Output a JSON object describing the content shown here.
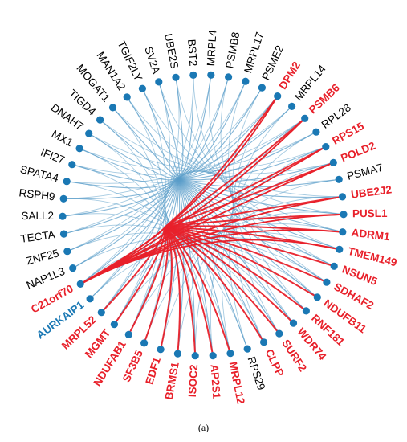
{
  "caption": "(a)",
  "colors": {
    "red": "#e8202a",
    "blue": "#1a78b4",
    "black": "#000000",
    "edge_blue": "#5b9ec9",
    "edge_red": "#e8202a"
  },
  "nodes": [
    {
      "label": "DPM2",
      "color": "red",
      "bold": true
    },
    {
      "label": "MRPL14",
      "color": "black",
      "bold": false
    },
    {
      "label": "PSMB6",
      "color": "red",
      "bold": true
    },
    {
      "label": "RPL28",
      "color": "black",
      "bold": false
    },
    {
      "label": "RPS15",
      "color": "red",
      "bold": true
    },
    {
      "label": "POLD2",
      "color": "red",
      "bold": true
    },
    {
      "label": "PSMA7",
      "color": "black",
      "bold": false
    },
    {
      "label": "UBE2J2",
      "color": "red",
      "bold": true
    },
    {
      "label": "PUSL1",
      "color": "red",
      "bold": true
    },
    {
      "label": "ADRM1",
      "color": "red",
      "bold": true
    },
    {
      "label": "TMEM149",
      "color": "red",
      "bold": true
    },
    {
      "label": "NSUN5",
      "color": "red",
      "bold": true
    },
    {
      "label": "SDHAF2",
      "color": "red",
      "bold": true
    },
    {
      "label": "NDUFB11",
      "color": "red",
      "bold": true
    },
    {
      "label": "RNF181",
      "color": "red",
      "bold": true
    },
    {
      "label": "WDR74",
      "color": "red",
      "bold": true
    },
    {
      "label": "SURF2",
      "color": "red",
      "bold": true
    },
    {
      "label": "CLPP",
      "color": "red",
      "bold": true
    },
    {
      "label": "RPS29",
      "color": "black",
      "bold": false
    },
    {
      "label": "MRPL12",
      "color": "red",
      "bold": true
    },
    {
      "label": "AP2S1",
      "color": "red",
      "bold": true
    },
    {
      "label": "ISOC2",
      "color": "red",
      "bold": true
    },
    {
      "label": "BRMS1",
      "color": "red",
      "bold": true
    },
    {
      "label": "EDF1",
      "color": "red",
      "bold": true
    },
    {
      "label": "SF3B5",
      "color": "red",
      "bold": true
    },
    {
      "label": "NDUFAB1",
      "color": "red",
      "bold": true
    },
    {
      "label": "MGMT",
      "color": "red",
      "bold": true
    },
    {
      "label": "MRPL52",
      "color": "red",
      "bold": true
    },
    {
      "label": "AURKAIP1",
      "color": "blue",
      "bold": true
    },
    {
      "label": "C21orf70",
      "color": "red",
      "bold": true
    },
    {
      "label": "NAP1L3",
      "color": "black",
      "bold": false
    },
    {
      "label": "ZNF25",
      "color": "black",
      "bold": false
    },
    {
      "label": "TECTA",
      "color": "black",
      "bold": false
    },
    {
      "label": "SALL2",
      "color": "black",
      "bold": false
    },
    {
      "label": "RSPH9",
      "color": "black",
      "bold": false
    },
    {
      "label": "SPATA4",
      "color": "black",
      "bold": false
    },
    {
      "label": "IFI27",
      "color": "black",
      "bold": false
    },
    {
      "label": "MX1",
      "color": "black",
      "bold": false
    },
    {
      "label": "DNAH7",
      "color": "black",
      "bold": false
    },
    {
      "label": "TIGD4",
      "color": "black",
      "bold": false
    },
    {
      "label": "MOGAT1",
      "color": "black",
      "bold": false
    },
    {
      "label": "MAN1A2",
      "color": "black",
      "bold": false
    },
    {
      "label": "TGIF2LY",
      "color": "black",
      "bold": false
    },
    {
      "label": "SV2A",
      "color": "black",
      "bold": false
    },
    {
      "label": "UBE2S",
      "color": "black",
      "bold": false
    },
    {
      "label": "BST2",
      "color": "black",
      "bold": false
    },
    {
      "label": "MRPL4",
      "color": "black",
      "bold": false
    },
    {
      "label": "PSMB8",
      "color": "black",
      "bold": false
    },
    {
      "label": "MRPL17",
      "color": "black",
      "bold": false
    },
    {
      "label": "PSME2",
      "color": "black",
      "bold": false
    }
  ]
}
